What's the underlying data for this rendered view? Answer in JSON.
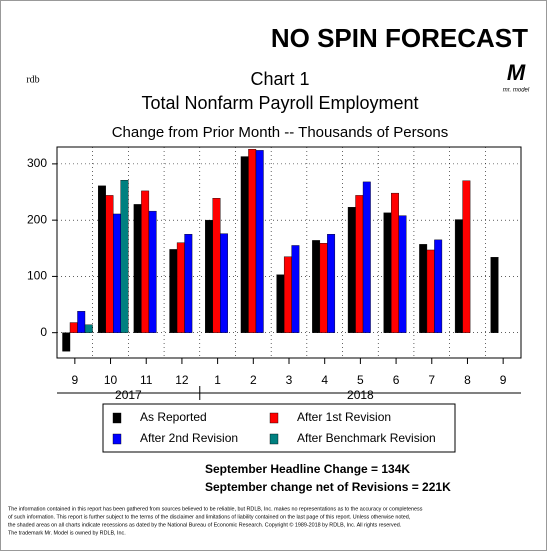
{
  "header": {
    "brand": "NO SPIN FORECAST",
    "left_logo": "rdb",
    "right_logo": "M",
    "right_logo_caption": "mr. model"
  },
  "chart_data": {
    "type": "bar",
    "title": "Chart 1",
    "title2": "Total Nonfarm Payroll Employment",
    "subtitle": "Change from Prior Month -- Thousands of Persons",
    "categories": [
      "9",
      "10",
      "11",
      "12",
      "1",
      "2",
      "3",
      "4",
      "5",
      "6",
      "7",
      "8",
      "9"
    ],
    "years": [
      "2017",
      "2017",
      "2017",
      "2017",
      "2018",
      "2018",
      "2018",
      "2018",
      "2018",
      "2018",
      "2018",
      "2018",
      "2018"
    ],
    "series": [
      {
        "name": "As Reported",
        "color": "#000000",
        "values": [
          -33,
          261,
          228,
          148,
          200,
          313,
          103,
          164,
          223,
          213,
          157,
          201,
          134
        ]
      },
      {
        "name": "After 1st Revision",
        "color": "#ff0000",
        "values": [
          18,
          244,
          252,
          160,
          239,
          326,
          135,
          159,
          244,
          248,
          147,
          270,
          null
        ]
      },
      {
        "name": "After 2nd Revision",
        "color": "#0000ff",
        "values": [
          38,
          211,
          216,
          175,
          176,
          324,
          155,
          175,
          268,
          208,
          165,
          null,
          null
        ]
      },
      {
        "name": "After Benchmark Revision",
        "color": "#008080",
        "values": [
          14,
          271,
          null,
          null,
          null,
          null,
          null,
          null,
          null,
          null,
          null,
          null,
          null
        ]
      }
    ],
    "ylim": [
      -45,
      330
    ],
    "yticks": [
      0,
      100,
      200,
      300
    ],
    "grid": true
  },
  "notes": [
    "September Headline Change =  134K",
    "September change net of Revisions = 221K"
  ],
  "disclaimer": [
    "The information contained in this report has been gathered from sources believed to be reliable, but RDLB, Inc. makes no representations as to the accuracy or completeness",
    "of such information. This report is further subject to the terms of the disclaimer and limitations of liability contained on the last page of this report.  Unless otherwise noted,",
    "the shaded areas on all charts indicate recessions as dated by the National Bureau of Economic Research. Copyright © 1989-2018 by RDLB, Inc. All rights reserved.",
    "The trademark Mr. Model is owned by RDLB, Inc."
  ]
}
